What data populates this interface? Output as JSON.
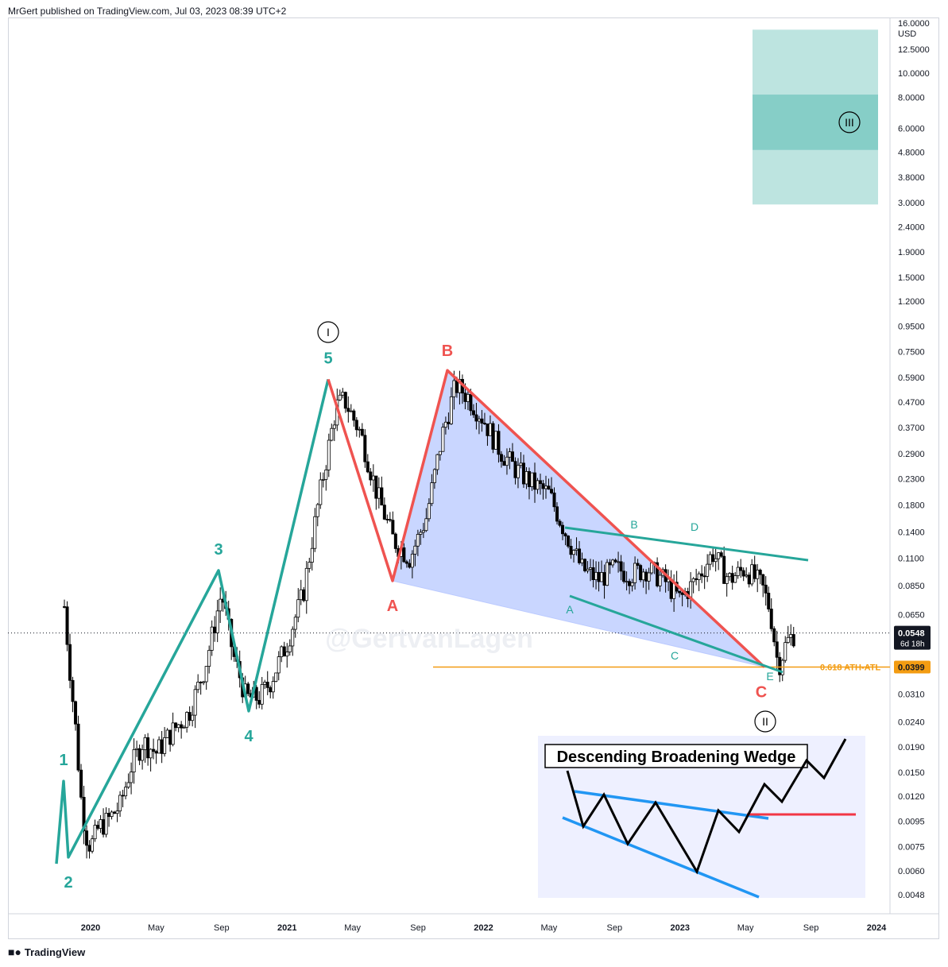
{
  "header": {
    "text": "MrGert published on TradingView.com, Jul 03, 2023 08:39 UTC+2"
  },
  "footer": {
    "brand": "TradingView",
    "logo_icon": "tradingview-logo-icon"
  },
  "watermark": "@GertvanLagen",
  "colors": {
    "impulse": "#26a69a",
    "correction": "#ef5350",
    "wedge_fill": "#b3c6ff",
    "target_box": "#b2dfdb",
    "target_box_dark": "#80cbc4",
    "fib_line": "#f39c12",
    "candle": "#000000",
    "inset_bg": "#eef0ff",
    "inset_blue": "#2196f3",
    "inset_red": "#f23645"
  },
  "chart_data": {
    "type": "candlestick",
    "scale": "log",
    "currency": "USD",
    "y_ticks": [
      "12.5000",
      "10.0000",
      "8.0000",
      "6.0000",
      "4.8000",
      "3.8000",
      "3.0000",
      "2.4000",
      "1.9000",
      "1.5000",
      "1.2000",
      "0.9500",
      "0.7500",
      "0.5900",
      "0.4700",
      "0.3700",
      "0.2900",
      "0.2300",
      "0.1800",
      "0.1400",
      "0.1100",
      "0.0850",
      "0.0650",
      "0.0399",
      "0.0310",
      "0.0240",
      "0.0190",
      "0.0150",
      "0.0120",
      "0.0095",
      "0.0075",
      "0.0060",
      "0.0048"
    ],
    "y_tick_values": [
      12.5,
      10,
      8,
      6,
      4.8,
      3.8,
      3,
      2.4,
      1.9,
      1.5,
      1.2,
      0.95,
      0.75,
      0.59,
      0.47,
      0.37,
      0.29,
      0.23,
      0.18,
      0.14,
      0.11,
      0.085,
      0.065,
      0.0399,
      0.031,
      0.024,
      0.019,
      0.015,
      0.012,
      0.0095,
      0.0075,
      0.006,
      0.0048
    ],
    "y_top_cut_label": "16.0000",
    "x_ticks": [
      "2020",
      "May",
      "Sep",
      "2021",
      "May",
      "Sep",
      "2022",
      "May",
      "Sep",
      "2023",
      "May",
      "Sep",
      "2024"
    ],
    "x_tick_dates": [
      "2020-01",
      "2020-05",
      "2020-09",
      "2021-01",
      "2021-05",
      "2021-09",
      "2022-01",
      "2022-05",
      "2022-09",
      "2023-01",
      "2023-05",
      "2023-09",
      "2024-01"
    ],
    "current_price": {
      "value": 0.0548,
      "label": "0.0548",
      "countdown": "6d 18h"
    },
    "fib_level": {
      "value": 0.0399,
      "label": "0.0399",
      "text": "0.618 ATH-ATL"
    },
    "target_box": {
      "low": 2.95,
      "high": 15.0,
      "inner_low": 4.9,
      "inner_high": 8.2,
      "start": "2023-12",
      "end": "2024-12",
      "label": "III"
    },
    "impulse_wave": [
      {
        "label": "1",
        "date": "2019-11",
        "price": 0.0138
      },
      {
        "label": "2",
        "date": "2019-11",
        "price": 0.0068
      },
      {
        "label": "3",
        "date": "2020-09",
        "price": 0.098
      },
      {
        "label": "4",
        "date": "2020-11",
        "price": 0.0265
      },
      {
        "label": "5",
        "date": "2021-04",
        "price": 0.58
      }
    ],
    "wave_start": {
      "date": "2019-10",
      "price": 0.0064
    },
    "correction_wave": [
      {
        "label": "A",
        "date": "2021-07",
        "price": 0.089
      },
      {
        "label": "B",
        "date": "2021-11",
        "price": 0.63
      },
      {
        "label": "C",
        "date": "2023-06",
        "price": 0.0399
      }
    ],
    "circled_labels": [
      {
        "label": "I",
        "date": "2021-04",
        "price": 0.58
      },
      {
        "label": "II",
        "date": "2023-06",
        "price": 0.0399
      }
    ],
    "triangle_labels": [
      {
        "label": "A",
        "date": "2022-06"
      },
      {
        "label": "B",
        "date": "2022-10"
      },
      {
        "label": "C",
        "date": "2022-12"
      },
      {
        "label": "D",
        "date": "2023-02"
      },
      {
        "label": "E",
        "date": "2023-06"
      }
    ],
    "candles_note": "daily-ish candles, ~ Nov 2019 to Jul 2023"
  },
  "inset": {
    "title": "Descending Broadening Wedge"
  }
}
